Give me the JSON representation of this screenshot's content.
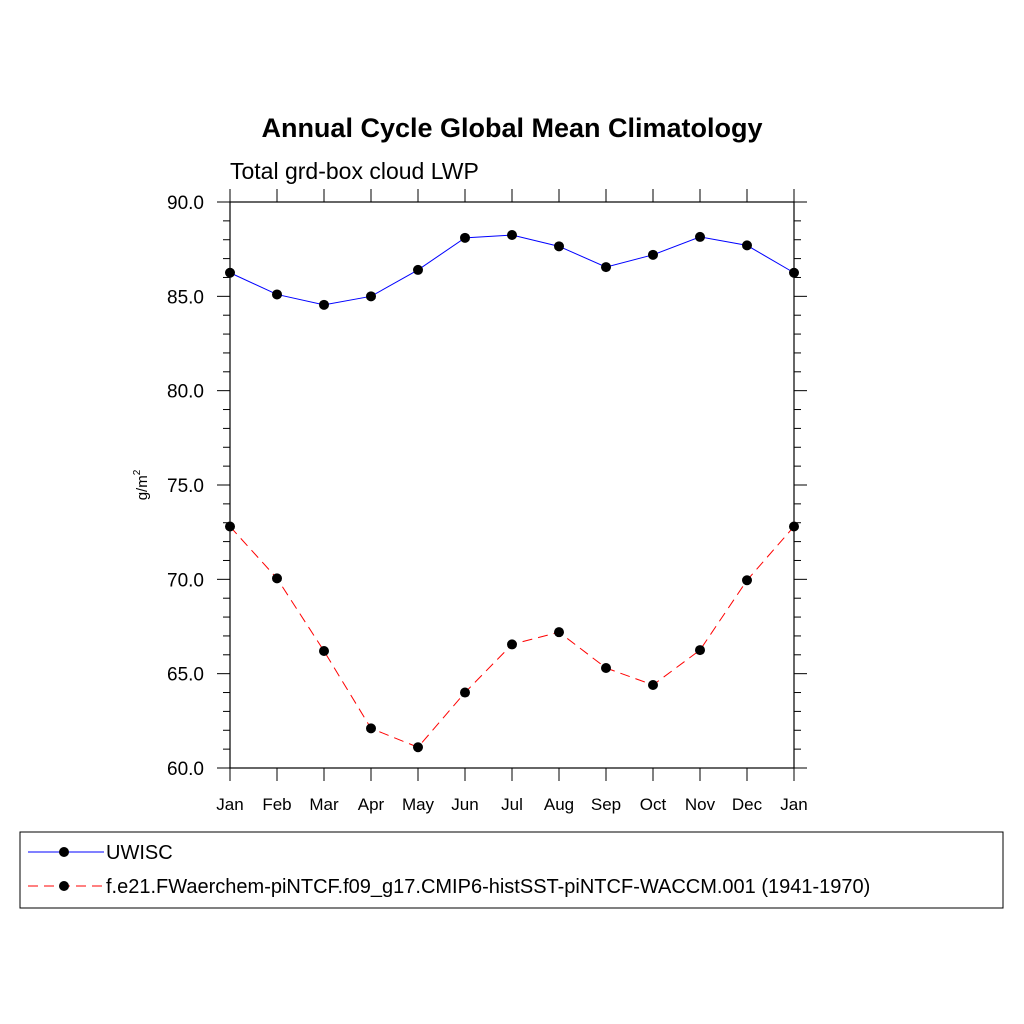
{
  "chart_data": {
    "type": "line",
    "title": "Annual Cycle Global Mean Climatology",
    "subtitle": "Total grd-box cloud LWP",
    "xlabel": "",
    "ylabel": "g/m",
    "ylabel_superscript": "2",
    "categories": [
      "Jan",
      "Feb",
      "Mar",
      "Apr",
      "May",
      "Jun",
      "Jul",
      "Aug",
      "Sep",
      "Oct",
      "Nov",
      "Dec",
      "Jan"
    ],
    "ylim": [
      60.0,
      90.0
    ],
    "yticks": [
      "60.0",
      "65.0",
      "70.0",
      "75.0",
      "80.0",
      "85.0",
      "90.0"
    ],
    "ytick_values": [
      60,
      65,
      70,
      75,
      80,
      85,
      90
    ],
    "series": [
      {
        "name": "UWISC",
        "color": "#0000ff",
        "dash": "solid",
        "values": [
          86.25,
          85.1,
          84.55,
          85.0,
          86.4,
          88.1,
          88.25,
          87.65,
          86.55,
          87.2,
          88.15,
          87.7,
          86.25
        ]
      },
      {
        "name": "f.e21.FWaerchem-piNTCF.f09_g17.CMIP6-histSST-piNTCF-WACCM.001 (1941-1970)",
        "color": "#ff0000",
        "dash": "dashed",
        "values": [
          72.8,
          70.05,
          66.2,
          62.1,
          61.1,
          64.0,
          66.55,
          67.2,
          65.3,
          64.4,
          66.25,
          69.95,
          72.8
        ]
      }
    ],
    "legend_position": "bottom"
  }
}
